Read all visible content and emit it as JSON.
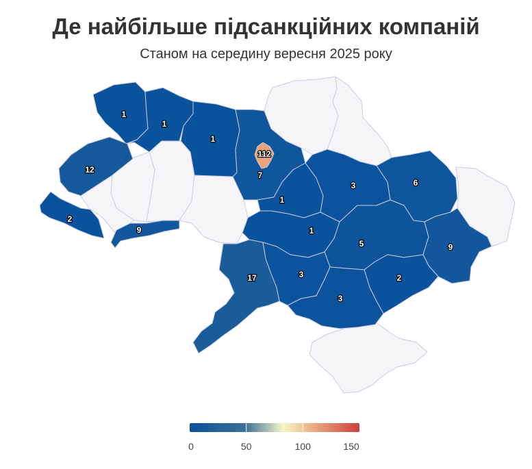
{
  "title": "Де найбільше підсанкційних компаній",
  "subtitle": "Станом на середину вересня 2025 року",
  "colors": {
    "no_data": "#f5f5f8",
    "border": "#c8cbe6",
    "scale": [
      "#08519c",
      "#3d7196",
      "#f7f7c6",
      "#e9a27c",
      "#c9403a"
    ]
  },
  "legend": {
    "min": 0,
    "max": 150,
    "ticks": [
      "0",
      "50",
      "100",
      "150"
    ]
  },
  "regions": [
    {
      "id": "volyn",
      "value": 1
    },
    {
      "id": "rivne",
      "value": 1
    },
    {
      "id": "zhytomyr",
      "value": 1
    },
    {
      "id": "kyiv-oblast",
      "value": 7
    },
    {
      "id": "kyiv-city",
      "value": 112
    },
    {
      "id": "lviv",
      "value": 12
    },
    {
      "id": "zakarpattia",
      "value": 2
    },
    {
      "id": "chernivtsi",
      "value": 9
    },
    {
      "id": "cherkasy",
      "value": 1
    },
    {
      "id": "poltava",
      "value": 3
    },
    {
      "id": "kharkiv",
      "value": 6
    },
    {
      "id": "kirovohrad",
      "value": 1
    },
    {
      "id": "dnipropetrovsk",
      "value": 5
    },
    {
      "id": "donetsk",
      "value": 9
    },
    {
      "id": "zaporizhzhia",
      "value": 2
    },
    {
      "id": "mykolaiv",
      "value": 3
    },
    {
      "id": "kherson",
      "value": 3
    },
    {
      "id": "odesa",
      "value": 17
    },
    {
      "id": "ternopil",
      "value": null
    },
    {
      "id": "ivano-frankivsk",
      "value": null
    },
    {
      "id": "khmelnytskyi",
      "value": null
    },
    {
      "id": "vinnytsia",
      "value": null
    },
    {
      "id": "chernihiv",
      "value": null
    },
    {
      "id": "sumy",
      "value": null
    },
    {
      "id": "luhansk",
      "value": null
    },
    {
      "id": "crimea",
      "value": null
    }
  ]
}
